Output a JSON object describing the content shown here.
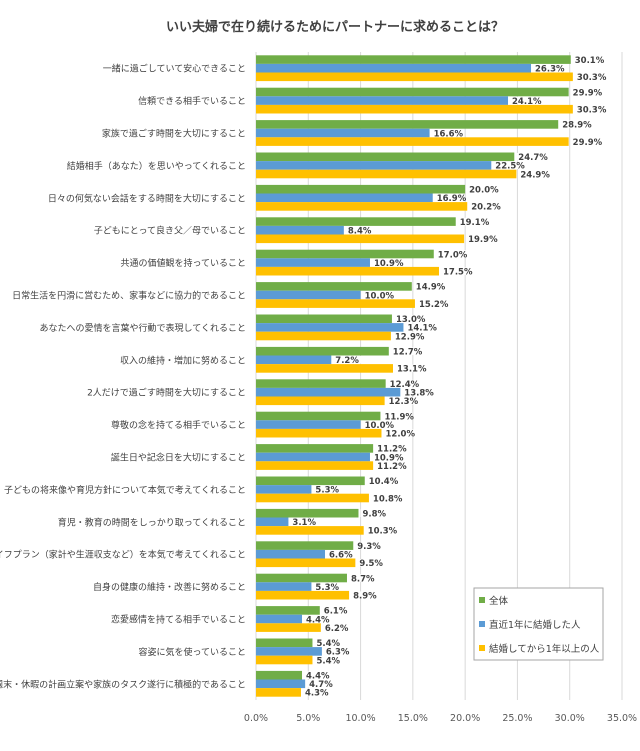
{
  "chart_data": {
    "type": "bar",
    "orientation": "horizontal",
    "title": "いい夫婦で在り続けるためにパートナーに求めることは？",
    "categories": [
      "一緒に過ごしていて安心できること",
      "信頼できる相手でいること",
      "家族で過ごす時間を大切にすること",
      "結婚相手（あなた）を思いやってくれること",
      "日々の何気ない会話をする時間を大切にすること",
      "子どもにとって良き父／母でいること",
      "共通の価値観を持っていること",
      "日常生活を円滑に営むため、家事などに協力的であること",
      "あなたへの愛情を言葉や行動で表現してくれること",
      "収入の維持・増加に努めること",
      "2人だけで過ごす時間を大切にすること",
      "尊敬の念を持てる相手でいること",
      "誕生日や記念日を大切にすること",
      "子どもの将来像や育児方針について本気で考えてくれること",
      "育児・教育の時間をしっかり取ってくれること",
      "ライフプラン（家計や生涯収支など）を本気で考えてくれること",
      "自身の健康の維持・改善に努めること",
      "恋愛感情を持てる相手でいること",
      "容姿に気を使っていること",
      "週末・休暇の計画立案や家族のタスク遂行に積極的であること"
    ],
    "series": [
      {
        "name": "全体",
        "color": "#70ad47",
        "values": [
          30.1,
          29.9,
          28.9,
          24.7,
          20.0,
          19.1,
          17.0,
          14.9,
          13.0,
          12.7,
          12.4,
          11.9,
          11.2,
          10.4,
          9.8,
          9.3,
          8.7,
          6.1,
          5.4,
          4.4
        ]
      },
      {
        "name": "直近1年に結婚した人",
        "color": "#5b9bd5",
        "values": [
          26.3,
          24.1,
          16.6,
          22.5,
          16.9,
          8.4,
          10.9,
          10.0,
          14.1,
          7.2,
          13.8,
          10.0,
          10.9,
          5.3,
          3.1,
          6.6,
          5.3,
          4.4,
          6.3,
          4.7
        ]
      },
      {
        "name": "結婚してから1年以上の人",
        "color": "#ffc000",
        "values": [
          30.3,
          30.3,
          29.9,
          24.9,
          20.2,
          19.9,
          17.5,
          15.2,
          12.9,
          13.1,
          12.3,
          12.0,
          11.2,
          10.8,
          10.3,
          9.5,
          8.9,
          6.2,
          5.4,
          4.3
        ]
      }
    ],
    "xlim": [
      0,
      35
    ],
    "xticks": [
      "0.0%",
      "5.0%",
      "10.0%",
      "15.0%",
      "20.0%",
      "25.0%",
      "30.0%",
      "35.0%"
    ],
    "tick_values": [
      0,
      5,
      10,
      15,
      20,
      25,
      30,
      35
    ],
    "value_format": "percent-1dp",
    "grid": true,
    "legend_position": "bottom-right"
  }
}
